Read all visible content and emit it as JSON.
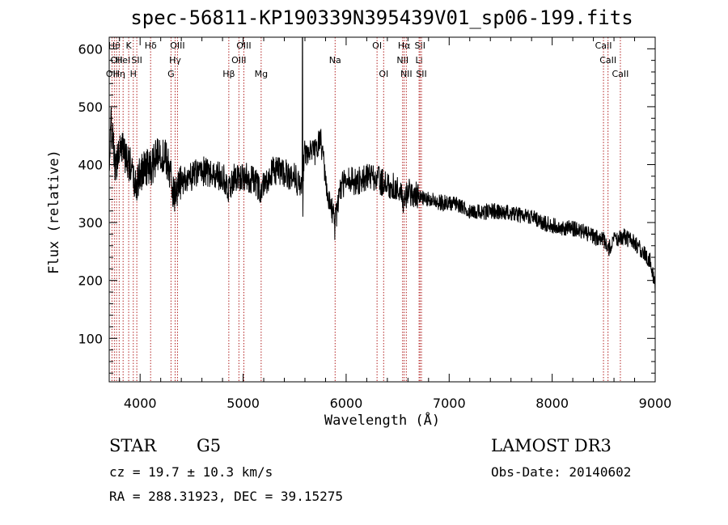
{
  "chart_data": {
    "type": "line",
    "title": "spec-56811-KP190339N395439V01_sp06-199.fits",
    "xlabel": "Wavelength (Å)",
    "ylabel": "Flux (relative)",
    "xlim": [
      3700,
      9000
    ],
    "ylim": [
      25,
      620
    ],
    "x_ticks": [
      4000,
      5000,
      6000,
      7000,
      8000,
      9000
    ],
    "y_ticks": [
      100,
      200,
      300,
      400,
      500,
      600
    ],
    "series": [
      {
        "name": "spectrum",
        "anchors": [
          [
            3700,
            400
          ],
          [
            3720,
            470
          ],
          [
            3760,
            390
          ],
          [
            3800,
            440
          ],
          [
            3850,
            420
          ],
          [
            3900,
            400
          ],
          [
            3950,
            360
          ],
          [
            4000,
            380
          ],
          [
            4050,
            400
          ],
          [
            4100,
            390
          ],
          [
            4150,
            410
          ],
          [
            4200,
            420
          ],
          [
            4250,
            410
          ],
          [
            4300,
            380
          ],
          [
            4340,
            340
          ],
          [
            4400,
            370
          ],
          [
            4500,
            380
          ],
          [
            4600,
            390
          ],
          [
            4700,
            380
          ],
          [
            4800,
            380
          ],
          [
            4860,
            360
          ],
          [
            4900,
            375
          ],
          [
            5000,
            380
          ],
          [
            5100,
            375
          ],
          [
            5175,
            350
          ],
          [
            5200,
            370
          ],
          [
            5300,
            390
          ],
          [
            5400,
            385
          ],
          [
            5500,
            380
          ],
          [
            5560,
            360
          ],
          [
            5600,
            420
          ],
          [
            5700,
            420
          ],
          [
            5750,
            445
          ],
          [
            5780,
            410
          ],
          [
            5800,
            360
          ],
          [
            5850,
            330
          ],
          [
            5893,
            300
          ],
          [
            5950,
            360
          ],
          [
            6000,
            375
          ],
          [
            6100,
            370
          ],
          [
            6200,
            380
          ],
          [
            6300,
            375
          ],
          [
            6400,
            365
          ],
          [
            6500,
            360
          ],
          [
            6563,
            335
          ],
          [
            6600,
            355
          ],
          [
            6700,
            345
          ],
          [
            6800,
            340
          ],
          [
            6900,
            335
          ],
          [
            7000,
            333
          ],
          [
            7100,
            330
          ],
          [
            7200,
            320
          ],
          [
            7300,
            318
          ],
          [
            7400,
            320
          ],
          [
            7500,
            318
          ],
          [
            7600,
            315
          ],
          [
            7700,
            312
          ],
          [
            7800,
            310
          ],
          [
            7900,
            300
          ],
          [
            8000,
            295
          ],
          [
            8100,
            290
          ],
          [
            8200,
            290
          ],
          [
            8300,
            285
          ],
          [
            8400,
            275
          ],
          [
            8500,
            270
          ],
          [
            8540,
            252
          ],
          [
            8600,
            270
          ],
          [
            8700,
            275
          ],
          [
            8800,
            265
          ],
          [
            8900,
            245
          ],
          [
            8950,
            235
          ],
          [
            9000,
            190
          ]
        ],
        "spikes": [
          {
            "x": 5577,
            "y": 620
          },
          {
            "x": 5580,
            "y": 310
          },
          {
            "x": 5890,
            "y": 270
          }
        ]
      }
    ],
    "lines": [
      {
        "wavelength": 3727,
        "label": "OII",
        "row": 2
      },
      {
        "wavelength": 3750,
        "label": "Hθ",
        "row": 0
      },
      {
        "wavelength": 3771,
        "label": "OII",
        "row": 1
      },
      {
        "wavelength": 3797,
        "label": "Hη",
        "row": 2
      },
      {
        "wavelength": 3835,
        "label": "HeI",
        "row": 1
      },
      {
        "wavelength": 3889,
        "label": "K",
        "row": 0
      },
      {
        "wavelength": 3934,
        "label": "H",
        "row": 2
      },
      {
        "wavelength": 3968,
        "label": "SII",
        "row": 1
      },
      {
        "wavelength": 4102,
        "label": "Hδ",
        "row": 0
      },
      {
        "wavelength": 4300,
        "label": "G",
        "row": 2
      },
      {
        "wavelength": 4340,
        "label": "Hγ",
        "row": 1
      },
      {
        "wavelength": 4363,
        "label": "OIII",
        "row": 0
      },
      {
        "wavelength": 4861,
        "label": "Hβ",
        "row": 2
      },
      {
        "wavelength": 4959,
        "label": "OIII",
        "row": 1
      },
      {
        "wavelength": 5007,
        "label": "OIII",
        "row": 0
      },
      {
        "wavelength": 5175,
        "label": "Mg",
        "row": 2
      },
      {
        "wavelength": 5893,
        "label": "Na",
        "row": 1
      },
      {
        "wavelength": 6300,
        "label": "OI",
        "row": 0
      },
      {
        "wavelength": 6364,
        "label": "OI",
        "row": 2
      },
      {
        "wavelength": 6548,
        "label": "NII",
        "row": 1
      },
      {
        "wavelength": 6563,
        "label": "Hα",
        "row": 0
      },
      {
        "wavelength": 6584,
        "label": "NII",
        "row": 2
      },
      {
        "wavelength": 6708,
        "label": "Li",
        "row": 1
      },
      {
        "wavelength": 6717,
        "label": "SII",
        "row": 0
      },
      {
        "wavelength": 6731,
        "label": "SII",
        "row": 2
      },
      {
        "wavelength": 8498,
        "label": "CaII",
        "row": 0
      },
      {
        "wavelength": 8542,
        "label": "CaII",
        "row": 1
      },
      {
        "wavelength": 8662,
        "label": "CaII",
        "row": 2
      }
    ],
    "line_color": "#b22222"
  },
  "info": {
    "object_type": "STAR",
    "subclass": "G5",
    "survey": "LAMOST DR3",
    "redshift": "cz = 19.7 ± 10.3 km/s",
    "obs_date": "Obs-Date: 20140602",
    "coords": "RA = 288.31923, DEC =  39.15275"
  }
}
